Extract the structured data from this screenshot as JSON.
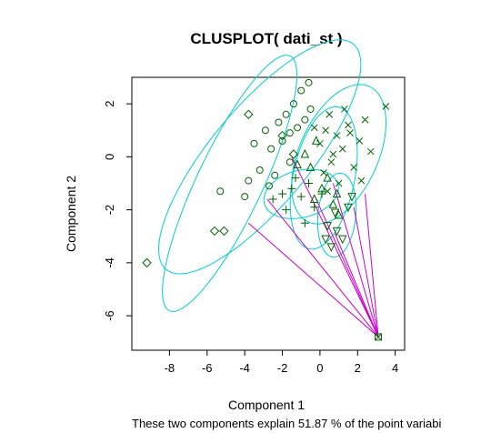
{
  "chart_data": {
    "type": "scatter",
    "title": "CLUSPLOT( dati_st )",
    "xlabel": "Component 1",
    "ylabel": "Component 2",
    "subtitle": "These two components explain 51.87 % of the point variabi",
    "xlim": [
      -10,
      4.5
    ],
    "ylim": [
      -7.3,
      3.0
    ],
    "xticks": [
      -8,
      -6,
      -4,
      -2,
      0,
      2,
      4
    ],
    "yticks": [
      -6,
      -4,
      -2,
      0,
      2
    ],
    "grid": false,
    "legend": "none",
    "colors": {
      "points": "#006400",
      "ellipses": "#00CED1",
      "lines": "#CC00CC",
      "frame": "#000000"
    },
    "clusters": [
      {
        "marker": "circle",
        "ellipse": {
          "center": [
            -3.2,
            0.0
          ],
          "axes": [
            6.6,
            2.2
          ],
          "angle_deg": 38
        },
        "points": [
          [
            -3.5,
            0.5
          ],
          [
            -3.2,
            -0.5
          ],
          [
            -2.9,
            1.0
          ],
          [
            -2.6,
            0.3
          ],
          [
            -2.4,
            -0.7
          ],
          [
            -2.2,
            1.3
          ],
          [
            -2.0,
            0.6
          ],
          [
            -1.8,
            1.6
          ],
          [
            -1.6,
            -0.2
          ],
          [
            -1.4,
            2.0
          ],
          [
            -1.2,
            1.1
          ],
          [
            -1.0,
            2.5
          ],
          [
            -0.8,
            1.4
          ],
          [
            -0.6,
            2.8
          ],
          [
            -0.5,
            1.8
          ],
          [
            -3.8,
            -0.9
          ],
          [
            -4.0,
            -1.5
          ],
          [
            -5.3,
            -1.3
          ],
          [
            -1.6,
            0.9
          ],
          [
            -2.7,
            -1.1
          ]
        ]
      },
      {
        "marker": "diamond",
        "ellipse": {
          "center": [
            -4.8,
            -1.0
          ],
          "axes": [
            5.8,
            1.6
          ],
          "angle_deg": 55
        },
        "points": [
          [
            -9.2,
            -4.0
          ],
          [
            -5.6,
            -2.8
          ],
          [
            -5.1,
            -2.8
          ],
          [
            -3.8,
            1.6
          ],
          [
            -2.0,
            0.8
          ],
          [
            -1.4,
            0.1
          ]
        ]
      },
      {
        "marker": "cross",
        "ellipse": {
          "center": [
            1.0,
            0.1
          ],
          "axes": [
            3.1,
            1.9
          ],
          "angle_deg": 48
        },
        "points": [
          [
            0.0,
            0.5
          ],
          [
            0.3,
            1.0
          ],
          [
            0.6,
            -0.2
          ],
          [
            0.9,
            0.8
          ],
          [
            1.2,
            0.3
          ],
          [
            1.5,
            1.2
          ],
          [
            1.8,
            -0.4
          ],
          [
            2.1,
            0.6
          ],
          [
            2.4,
            1.4
          ],
          [
            2.7,
            0.2
          ],
          [
            0.2,
            -0.6
          ],
          [
            0.5,
            1.6
          ],
          [
            1.0,
            -1.0
          ],
          [
            1.3,
            1.8
          ],
          [
            0.7,
            0.1
          ],
          [
            -0.3,
            1.1
          ],
          [
            1.6,
            0.9
          ],
          [
            2.2,
            -0.9
          ],
          [
            3.5,
            1.9
          ],
          [
            0.4,
            -1.3
          ]
        ]
      },
      {
        "marker": "triangle-up",
        "ellipse": {
          "center": [
            0.2,
            -0.8
          ],
          "axes": [
            2.8,
            1.6
          ],
          "angle_deg": 70
        },
        "points": [
          [
            -0.8,
            0.1
          ],
          [
            -0.5,
            -0.4
          ],
          [
            -0.2,
            0.6
          ],
          [
            0.1,
            -1.2
          ],
          [
            0.4,
            -0.8
          ],
          [
            0.7,
            -1.8
          ],
          [
            1.0,
            -2.2
          ],
          [
            -1.2,
            -0.3
          ],
          [
            -0.3,
            -1.6
          ],
          [
            0.9,
            -1.4
          ]
        ]
      },
      {
        "marker": "plus",
        "ellipse": {
          "center": [
            -1.0,
            -1.4
          ],
          "axes": [
            2.0,
            0.9
          ],
          "angle_deg": 8
        },
        "points": [
          [
            -2.5,
            -1.6
          ],
          [
            -2.0,
            -1.4
          ],
          [
            -1.5,
            -1.2
          ],
          [
            -1.0,
            -1.5
          ],
          [
            -0.6,
            -1.0
          ],
          [
            -0.3,
            -1.9
          ],
          [
            0.1,
            -1.4
          ],
          [
            -1.8,
            -2.0
          ],
          [
            -0.8,
            -2.5
          ],
          [
            -1.3,
            -0.8
          ]
        ]
      },
      {
        "marker": "triangle-down",
        "ellipse": {
          "center": [
            0.9,
            -2.2
          ],
          "axes": [
            1.6,
            1.0
          ],
          "angle_deg": 80
        },
        "points": [
          [
            0.4,
            -2.6
          ],
          [
            0.8,
            -2.1
          ],
          [
            1.2,
            -3.1
          ],
          [
            0.6,
            -3.4
          ],
          [
            1.5,
            -1.9
          ],
          [
            0.9,
            -2.8
          ],
          [
            1.7,
            -1.5
          ],
          [
            0.3,
            -3.1
          ]
        ]
      },
      {
        "marker": "square-x",
        "ellipse": null,
        "points": [
          [
            3.1,
            -6.8
          ]
        ]
      }
    ],
    "lines_from": [
      3.1,
      -6.8
    ],
    "lines_to": [
      [
        -3.8,
        -2.5
      ],
      [
        -2.8,
        -1.6
      ],
      [
        -1.5,
        0.0
      ],
      [
        -0.2,
        -1.6
      ],
      [
        0.8,
        -2.9
      ],
      [
        0.7,
        -1.0
      ],
      [
        1.8,
        -1.9
      ],
      [
        2.4,
        -1.4
      ]
    ]
  }
}
